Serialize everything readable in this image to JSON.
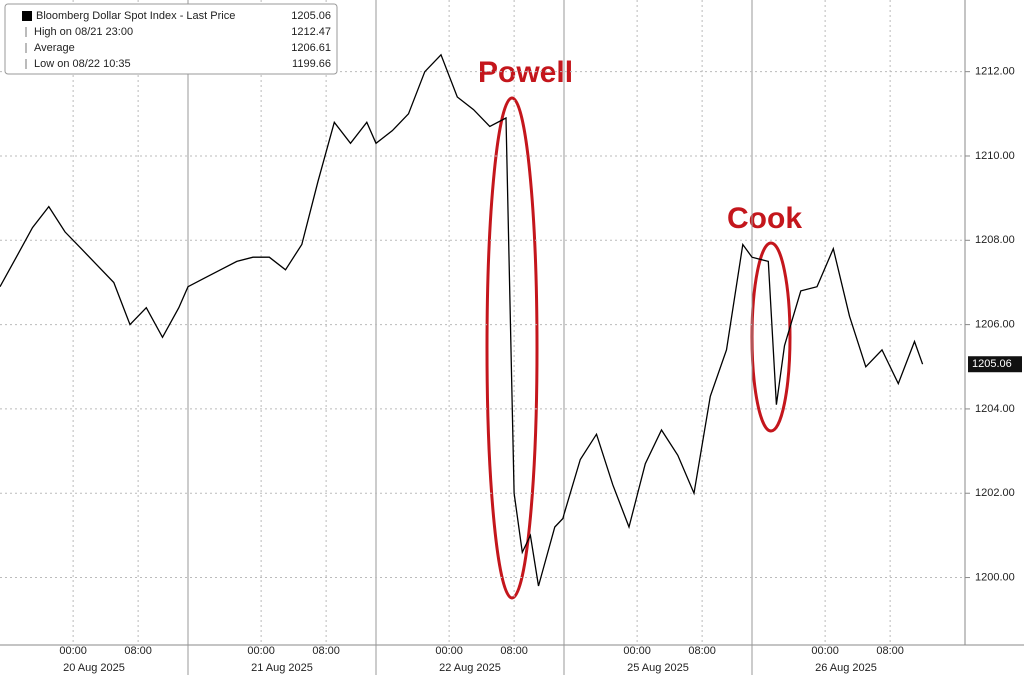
{
  "chart_data": {
    "type": "line",
    "legend": [
      {
        "label": "Bloomberg Dollar Spot Index - Last Price",
        "value": 1205.06
      },
      {
        "label": "High on 08/21 23:00",
        "value": 1212.47
      },
      {
        "label": "Average",
        "value": 1206.61
      },
      {
        "label": "Low on 08/22 10:35",
        "value": 1199.66
      }
    ],
    "annotations": [
      "Powell",
      "Cook"
    ],
    "last_price_label": "1205.06",
    "x": [
      "2025-08-19 15:00",
      "2025-08-19 17:00",
      "2025-08-19 19:00",
      "2025-08-19 21:00",
      "2025-08-19 23:00",
      "2025-08-20 01:00",
      "2025-08-20 03:00",
      "2025-08-20 05:00",
      "2025-08-20 07:00",
      "2025-08-20 09:00",
      "2025-08-20 11:00",
      "2025-08-20 13:00",
      "2025-08-20 15:00",
      "2025-08-20 17:00",
      "2025-08-20 19:00",
      "2025-08-20 21:00",
      "2025-08-20 23:00",
      "2025-08-21 01:00",
      "2025-08-21 03:00",
      "2025-08-21 05:00",
      "2025-08-21 07:00",
      "2025-08-21 09:00",
      "2025-08-21 11:00",
      "2025-08-21 13:00",
      "2025-08-21 15:00",
      "2025-08-21 17:00",
      "2025-08-21 19:00",
      "2025-08-21 21:00",
      "2025-08-21 23:00",
      "2025-08-22 01:00",
      "2025-08-22 03:00",
      "2025-08-22 05:00",
      "2025-08-22 07:00",
      "2025-08-22 08:00",
      "2025-08-22 09:00",
      "2025-08-22 10:00",
      "2025-08-22 11:00",
      "2025-08-22 13:00",
      "2025-08-22 14:00",
      "2025-08-24 15:00",
      "2025-08-24 17:00",
      "2025-08-24 19:00",
      "2025-08-24 21:00",
      "2025-08-24 23:00",
      "2025-08-25 01:00",
      "2025-08-25 03:00",
      "2025-08-25 05:00",
      "2025-08-25 07:00",
      "2025-08-25 09:00",
      "2025-08-25 11:00",
      "2025-08-25 13:00",
      "2025-08-25 15:00",
      "2025-08-25 17:00",
      "2025-08-25 18:00",
      "2025-08-25 19:00",
      "2025-08-25 21:00",
      "2025-08-25 23:00",
      "2025-08-26 01:00",
      "2025-08-26 03:00",
      "2025-08-26 05:00",
      "2025-08-26 07:00",
      "2025-08-26 09:00",
      "2025-08-26 11:00",
      "2025-08-26 12:00"
    ],
    "series": [
      {
        "name": "Bloomberg Dollar Spot Index",
        "color": "#000000",
        "values": [
          1206.9,
          1207.6,
          1208.3,
          1208.8,
          1208.2,
          1207.8,
          1207.4,
          1207.0,
          1206.0,
          1206.4,
          1205.7,
          1206.4,
          1206.9,
          1207.1,
          1207.3,
          1207.5,
          1207.6,
          1207.6,
          1207.3,
          1207.9,
          1209.4,
          1210.8,
          1210.3,
          1210.8,
          1210.3,
          1210.6,
          1211.0,
          1212.0,
          1212.4,
          1211.4,
          1211.1,
          1210.7,
          1210.9,
          1202.0,
          1200.6,
          1201.0,
          1199.8,
          1201.2,
          1201.4,
          1201.5,
          1202.8,
          1203.4,
          1202.2,
          1201.2,
          1202.7,
          1203.5,
          1202.9,
          1202.0,
          1204.3,
          1205.4,
          1207.9,
          1207.6,
          1207.5,
          1204.1,
          1205.5,
          1206.8,
          1206.9,
          1207.8,
          1206.2,
          1205.0,
          1205.4,
          1204.6,
          1205.6,
          1205.06
        ]
      }
    ],
    "ylim": [
      1198.4,
      1213.7
    ],
    "yticks": [
      {
        "value": 1200,
        "label": "1200.00"
      },
      {
        "value": 1202,
        "label": "1202.00"
      },
      {
        "value": 1204,
        "label": "1204.00"
      },
      {
        "value": 1206,
        "label": "1206.00"
      },
      {
        "value": 1208,
        "label": "1208.00"
      },
      {
        "value": 1210,
        "label": "1210.00"
      },
      {
        "value": 1212,
        "label": "1212.00"
      }
    ],
    "xticks": [
      {
        "value": "2025-08-20 00:00",
        "label": "00:00"
      },
      {
        "value": "2025-08-20 08:00",
        "label": "08:00"
      },
      {
        "value": "2025-08-21 00:00",
        "label": "00:00"
      },
      {
        "value": "2025-08-21 08:00",
        "label": "08:00"
      },
      {
        "value": "2025-08-22 00:00",
        "label": "00:00"
      },
      {
        "value": "2025-08-22 08:00",
        "label": "08:00"
      },
      {
        "value": "2025-08-25 00:00",
        "label": "00:00"
      },
      {
        "value": "2025-08-25 08:00",
        "label": "08:00"
      },
      {
        "value": "2025-08-26 00:00",
        "label": "00:00"
      },
      {
        "value": "2025-08-26 08:00",
        "label": "08:00"
      }
    ],
    "date_labels": [
      {
        "value": "2025-08-20",
        "label": "20 Aug 2025"
      },
      {
        "value": "2025-08-21",
        "label": "21 Aug 2025"
      },
      {
        "value": "2025-08-22",
        "label": "22 Aug 2025"
      },
      {
        "value": "2025-08-25",
        "label": "25 Aug 2025"
      },
      {
        "value": "2025-08-26",
        "label": "26 Aug 2025"
      }
    ],
    "grid": true
  }
}
